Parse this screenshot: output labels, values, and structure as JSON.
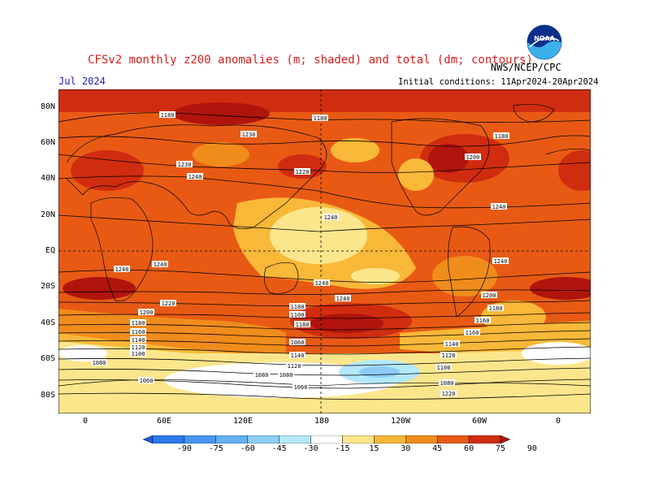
{
  "header": {
    "title": "CFSv2 monthly z200 anomalies (m; shaded) and total (dm; contours)",
    "month": "Jul 2024",
    "agency": "NWS/NCEP/CPC",
    "initial_conditions": "Initial conditions: 11Apr2024-20Apr2024",
    "logo_text": "NOAA"
  },
  "axes": {
    "lat_labels": [
      "80N",
      "60N",
      "40N",
      "20N",
      "EQ",
      "20S",
      "40S",
      "60S",
      "80S"
    ],
    "lon_labels": [
      "0",
      "60E",
      "120E",
      "180",
      "120W",
      "60W",
      "0"
    ]
  },
  "contours": {
    "labels": [
      "1180",
      "1180",
      "1230",
      "1200",
      "1180",
      "1230",
      "1240",
      "1220",
      "1240",
      "1240",
      "1240",
      "1240",
      "1240",
      "1240",
      "1240",
      "1220",
      "1220",
      "1200",
      "1200",
      "1180",
      "1180",
      "1180",
      "1160",
      "1140",
      "1120",
      "1100",
      "1080",
      "1060",
      "1080",
      "1060",
      "1160",
      "1140",
      "1120",
      "1100",
      "1080",
      "1060",
      "1140",
      "1120",
      "1100",
      "1160",
      "1180",
      "1200",
      "1220",
      "1080"
    ]
  },
  "colorbar": {
    "labels": [
      "-90",
      "-75",
      "-60",
      "-45",
      "-30",
      "-15",
      "15",
      "30",
      "45",
      "60",
      "75",
      "90"
    ],
    "colors": [
      "#1c5ad8",
      "#2c7ae8",
      "#4696f0",
      "#64b0f4",
      "#8cccf8",
      "#b4e8fc",
      "#ffffff",
      "#fce68c",
      "#f8b838",
      "#f08c1c",
      "#e85a14",
      "#d02c10",
      "#b0140c"
    ]
  }
}
